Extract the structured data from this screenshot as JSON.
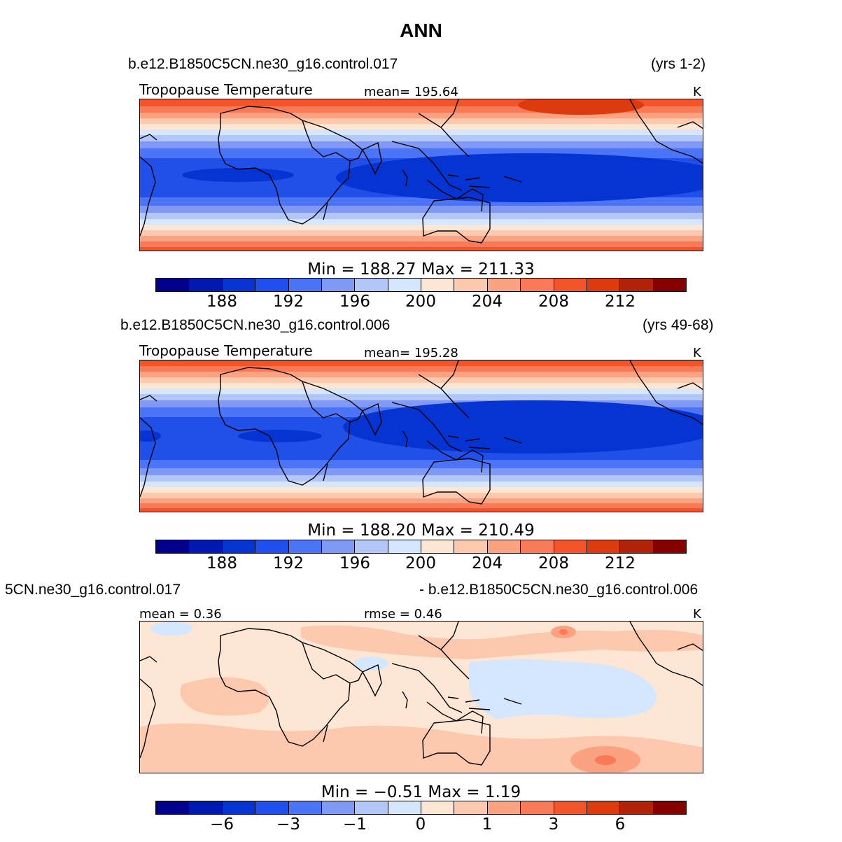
{
  "title": "ANN",
  "colors": [
    "#00008c",
    "#0019b0",
    "#0534d2",
    "#1f4fee",
    "#4c74f6",
    "#8099f4",
    "#b2c6f8",
    "#d5e6ff",
    "#fde6d4",
    "#fcc8ae",
    "#fba283",
    "#f87a56",
    "#f4542a",
    "#dd3a0e",
    "#b22208",
    "#870000"
  ],
  "panels": [
    {
      "case_name": "b.e12.B1850C5CN.ne30_g16.control.017",
      "time_range": "(yrs 1-2)",
      "left_label": "Tropopause Temperature",
      "center_label": "mean= 195.64",
      "units": "K",
      "stats": "Min = 188.27 Max = 211.33",
      "ticks": [
        "188",
        "192",
        "196",
        "200",
        "204",
        "208",
        "212"
      ]
    },
    {
      "case_name": "b.e12.B1850C5CN.ne30_g16.control.006",
      "time_range": "(yrs 49-68)",
      "left_label": "Tropopause Temperature",
      "center_label": "mean= 195.28",
      "units": "K",
      "stats": "Min = 188.20 Max = 210.49",
      "ticks": [
        "188",
        "192",
        "196",
        "200",
        "204",
        "208",
        "212"
      ]
    },
    {
      "case_left": "5CN.ne30_g16.control.017",
      "case_right": "- b.e12.B1850C5CN.ne30_g16.control.006",
      "left_label": "mean =   0.36",
      "center_label": "rmse =   0.46",
      "units": "K",
      "stats": "Min =  −0.51  Max =   1.19",
      "ticks": [
        "−6",
        "−3",
        "−1",
        "0",
        "1",
        "3",
        "6"
      ]
    }
  ]
}
